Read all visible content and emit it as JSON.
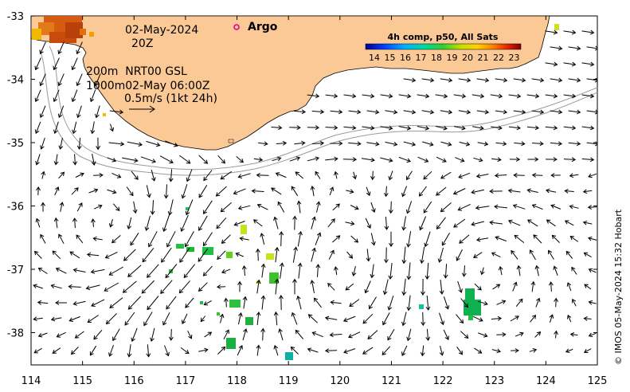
{
  "map": {
    "date": "02-May-2024",
    "hour": "20Z",
    "argo_label": "Argo",
    "isobaths": "200m  NRT00 GSL",
    "isobaths2": "1000m02-May 06:00Z",
    "scale_label": "0.5m/s (1kt 24h)",
    "credit": "© IMOS 05-May-2024 15:32 Hobart",
    "lon_ticks": [
      "114",
      "115",
      "116",
      "117",
      "118",
      "119",
      "120",
      "121",
      "122",
      "123",
      "124",
      "125"
    ],
    "lat_ticks": [
      "-33",
      "-34",
      "-35",
      "-36",
      "-37",
      "-38"
    ],
    "colors": {
      "land": "#fbc995",
      "isobath": "#9a9a9a",
      "argo": "#e0009a"
    }
  },
  "colorbar": {
    "title": "4h comp, p50, All Sats",
    "labels": [
      "14",
      "15",
      "16",
      "17",
      "18",
      "19",
      "20",
      "21",
      "22",
      "23"
    ]
  }
}
